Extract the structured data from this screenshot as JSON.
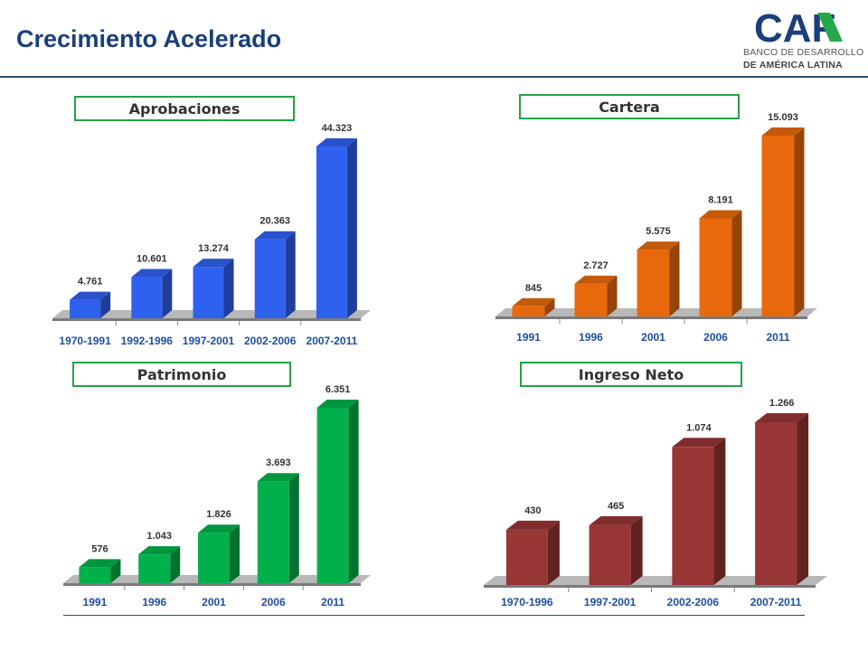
{
  "header": {
    "title": "Crecimiento Acelerado",
    "logo_text": "CAF",
    "logo_line1": "BANCO DE DESARROLLO",
    "logo_line2": "DE AMÉRICA LATINA"
  },
  "chart_data": [
    {
      "type": "bar",
      "title": "Aprobaciones",
      "categories": [
        "1970-1991",
        "1992-1996",
        "1997-2001",
        "2002-2006",
        "2007-2011"
      ],
      "values": [
        4761,
        10601,
        13274,
        20363,
        44323
      ],
      "value_labels": [
        "4.761",
        "10.601",
        "13.274",
        "20.363",
        "44.323"
      ],
      "color": "#3060f0"
    },
    {
      "type": "bar",
      "title": "Cartera",
      "categories": [
        "1991",
        "1996",
        "2001",
        "2006",
        "2011"
      ],
      "values": [
        845,
        2727,
        5575,
        8191,
        15093
      ],
      "value_labels": [
        "845",
        "2.727",
        "5.575",
        "8.191",
        "15.093"
      ],
      "color": "#e8690c"
    },
    {
      "type": "bar",
      "title": "Patrimonio",
      "categories": [
        "1991",
        "1996",
        "2001",
        "2006",
        "2011"
      ],
      "values": [
        576,
        1043,
        1826,
        3693,
        6351
      ],
      "value_labels": [
        "576",
        "1.043",
        "1.826",
        "3.693",
        "6.351"
      ],
      "color": "#00b04a"
    },
    {
      "type": "bar",
      "title": "Ingreso Neto",
      "categories": [
        "1970-1996",
        "1997-2001",
        "2002-2006",
        "2007-2011"
      ],
      "values": [
        430,
        465,
        1074,
        1266
      ],
      "value_labels": [
        "430",
        "465",
        "1.074",
        "1.266"
      ],
      "color": "#983535"
    }
  ]
}
